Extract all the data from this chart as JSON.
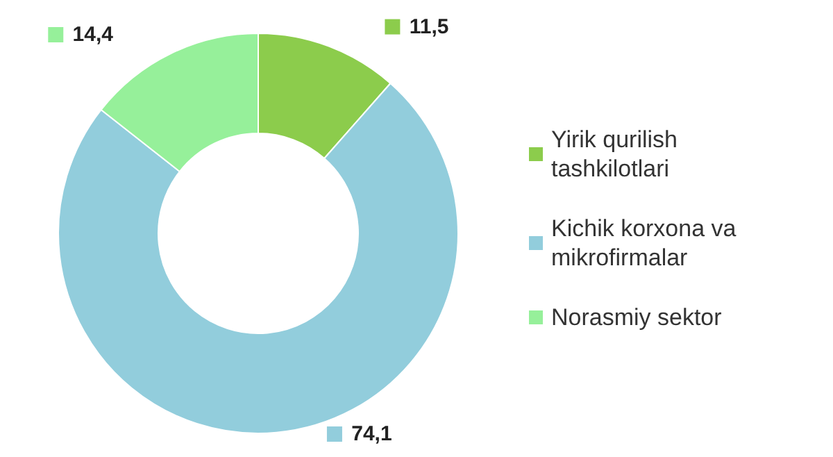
{
  "chart_data": {
    "type": "donut",
    "categories": [
      "Yirik qurilish tashkilotlari",
      "Kichik korxona va mikrofirmalar",
      "Norasmiy sektor"
    ],
    "values": [
      11.5,
      74.1,
      14.4
    ],
    "colors": [
      "#8ccc4c",
      "#92cddc",
      "#96f09a"
    ],
    "value_labels": [
      "11,5",
      "74,1",
      "14,4"
    ],
    "legend": "right"
  }
}
